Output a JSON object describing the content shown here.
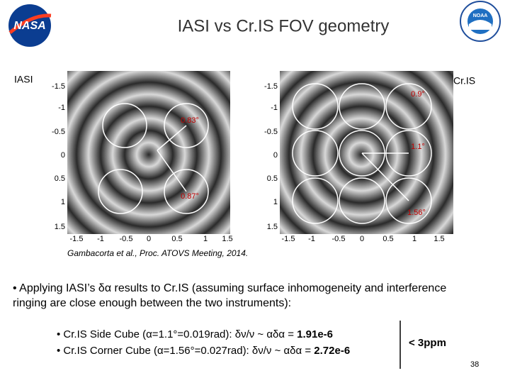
{
  "header": {
    "title": "IASI vs Cr.IS FOV geometry"
  },
  "figure": {
    "left_label": "IASI",
    "right_label": "Cr.IS",
    "panels": [
      {
        "yticks": [
          "-1.5",
          "-1",
          "-0.5",
          "0",
          "0.5",
          "1",
          "1.5"
        ],
        "xticks": [
          "-1.5",
          "-1",
          "-0.5",
          "0",
          "0.5",
          "1",
          "1.5"
        ],
        "angles": [
          "0.83°",
          "0.87°"
        ]
      },
      {
        "yticks": [
          "-1.5",
          "-1",
          "-0.5",
          "0",
          "0.5",
          "1",
          "1.5"
        ],
        "xticks": [
          "-1.5",
          "-1",
          "-0.5",
          "0",
          "0.5",
          "1",
          "1.5"
        ],
        "angles": [
          "0.9°",
          "1.1°",
          "1.56°"
        ]
      }
    ],
    "citation": "Gambacorta et al., Proc. ATOVS Meeting, 2014."
  },
  "body": {
    "bullet": "• Applying IASI’s δα results to Cr.IS (assuming surface inhomogeneity and interference ringing are close enough between the two instruments):",
    "sub_bullets": [
      {
        "text": "• Cr.IS Side Cube (α=1.1°=0.019rad): δν/ν ~ αδα = ",
        "value": "1.91e-6"
      },
      {
        "text": "• Cr.IS Corner Cube (α=1.56°=0.027rad): δν/ν ~ αδα = ",
        "value": "2.72e-6"
      }
    ],
    "summary": "< 3ppm"
  },
  "footer": {
    "page": "38"
  }
}
